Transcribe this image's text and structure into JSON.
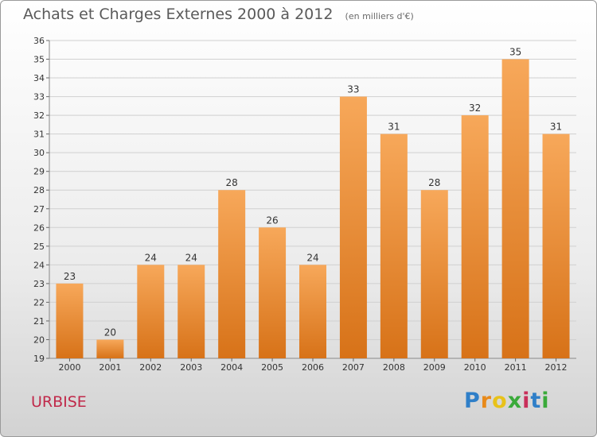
{
  "title": "Achats et Charges Externes 2000 à 2012",
  "unit": "(en milliers d'€)",
  "commune": "URBISE",
  "logo": {
    "text": "Proxiti",
    "colors": [
      "#2f7fc8",
      "#e88a1a",
      "#e8c21a",
      "#3aaa3a",
      "#c82f5a",
      "#2f7fc8",
      "#3aaa3a"
    ]
  },
  "colors": {
    "bar_light": "#f7a85a",
    "bar_dark": "#d77218",
    "grid": "#d0d0d0",
    "axis_text": "#333333",
    "commune": "#c0294a"
  },
  "chart_data": {
    "type": "bar",
    "categories": [
      "2000",
      "2001",
      "2002",
      "2003",
      "2004",
      "2005",
      "2006",
      "2007",
      "2008",
      "2009",
      "2010",
      "2011",
      "2012"
    ],
    "values": [
      23,
      20,
      24,
      24,
      28,
      26,
      24,
      33,
      31,
      28,
      32,
      35,
      31
    ],
    "ylim": [
      19,
      36
    ],
    "yticks": [
      19,
      20,
      21,
      22,
      23,
      24,
      25,
      26,
      27,
      28,
      29,
      30,
      31,
      32,
      33,
      34,
      35,
      36
    ],
    "grid": true,
    "data_labels": true
  }
}
